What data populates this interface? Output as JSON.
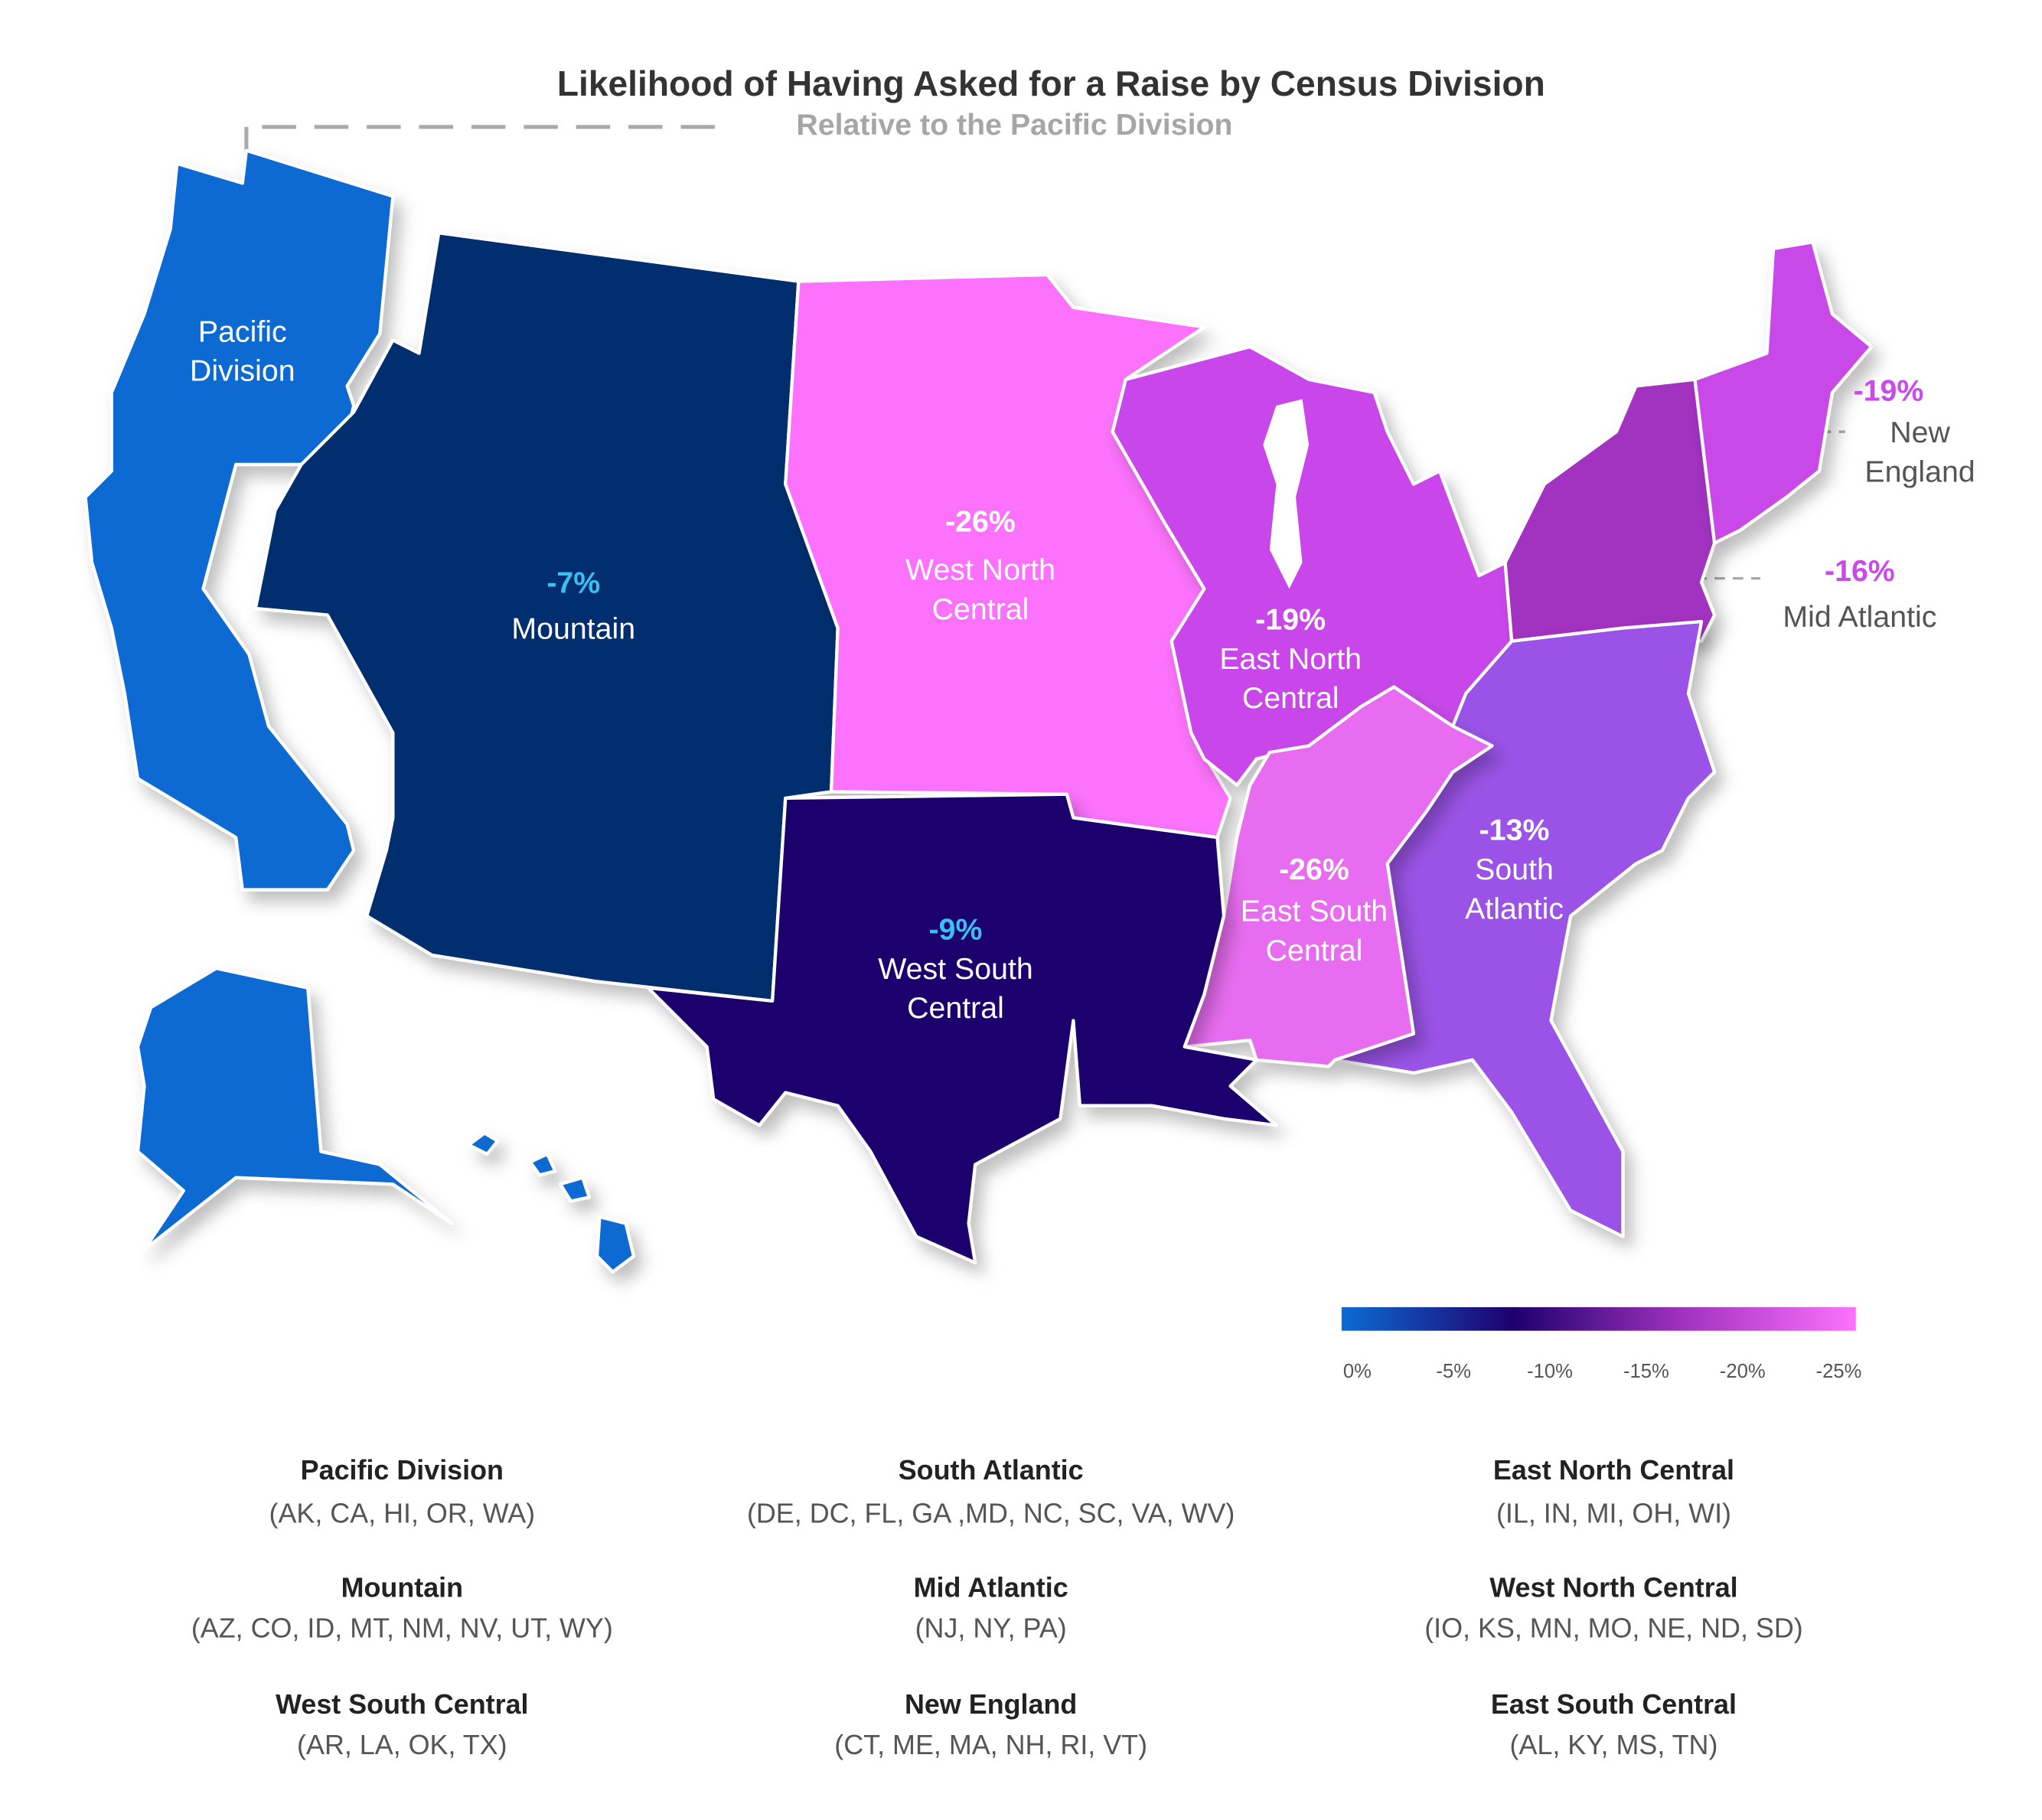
{
  "title": "Likelihood of Having Asked for a Raise by Census Division",
  "subtitle": "Relative to the Pacific Division",
  "regions": [
    {
      "id": "pacific",
      "label_lines": [
        "Pacific",
        "Division"
      ],
      "color": "#0d6bd3"
    },
    {
      "id": "mountain",
      "label_lines": [
        "Mountain"
      ],
      "value": -7,
      "value_label": "-7%",
      "color": "#032f6e"
    },
    {
      "id": "west-north-central",
      "label_lines": [
        "West North",
        "Central"
      ],
      "value": -26,
      "value_label": "-26%",
      "color": "#fc72fc"
    },
    {
      "id": "east-north-central",
      "label_lines": [
        "East North",
        "Central"
      ],
      "value": -19,
      "value_label": "-19%",
      "color": "#c947ea"
    },
    {
      "id": "mid-atlantic",
      "label_lines": [
        "Mid Atlantic"
      ],
      "value": -16,
      "value_label": "-16%",
      "color": "#a232c0"
    },
    {
      "id": "new-england",
      "label_lines": [
        "New",
        "England"
      ],
      "value": -19,
      "value_label": "-19%",
      "color": "#c94ae8"
    },
    {
      "id": "south-atlantic",
      "label_lines": [
        "South",
        "Atlantic"
      ],
      "value": -13,
      "value_label": "-13%",
      "color": "#9a52e6"
    },
    {
      "id": "east-south-central",
      "label_lines": [
        "East South",
        "Central"
      ],
      "value": -26,
      "value_label": "-26%",
      "color": "#e86cf0"
    },
    {
      "id": "west-south-central",
      "label_lines": [
        "West South",
        "Central"
      ],
      "value": -9,
      "value_label": "-9%",
      "color": "#1e006e"
    }
  ],
  "color_scale": {
    "range": [
      0,
      -25
    ],
    "colors": [
      "#0d6bd3",
      "#1e006e",
      "#a232c0",
      "#fc72fc"
    ],
    "ticks": [
      {
        "value": 0,
        "label": "0%"
      },
      {
        "value": -5,
        "label": "-5%"
      },
      {
        "value": -10,
        "label": "-10%"
      },
      {
        "value": -15,
        "label": "-15%"
      },
      {
        "value": -20,
        "label": "-20%"
      },
      {
        "value": -25,
        "label": "-25%"
      }
    ]
  },
  "division_key": [
    {
      "name": "Pacific Division",
      "states": "(AK, CA, HI, OR, WA)"
    },
    {
      "name": "Mountain",
      "states": "(AZ, CO, ID, MT, NM, NV, UT, WY)"
    },
    {
      "name": "West South Central",
      "states": "(AR, LA, OK, TX)"
    },
    {
      "name": "South Atlantic",
      "states": "(DE, DC, FL, GA ,MD, NC, SC, VA, WV)"
    },
    {
      "name": "Mid Atlantic",
      "states": "(NJ, NY, PA)"
    },
    {
      "name": "New England",
      "states": "(CT, ME, MA, NH, RI, VT)"
    },
    {
      "name": "East North Central",
      "states": "(IL, IN, MI, OH, WI)"
    },
    {
      "name": "West North Central",
      "states": "(IO, KS, MN, MO, NE, ND, SD)"
    },
    {
      "name": "East South Central",
      "states": "(AL, KY, MS, TN)"
    }
  ]
}
